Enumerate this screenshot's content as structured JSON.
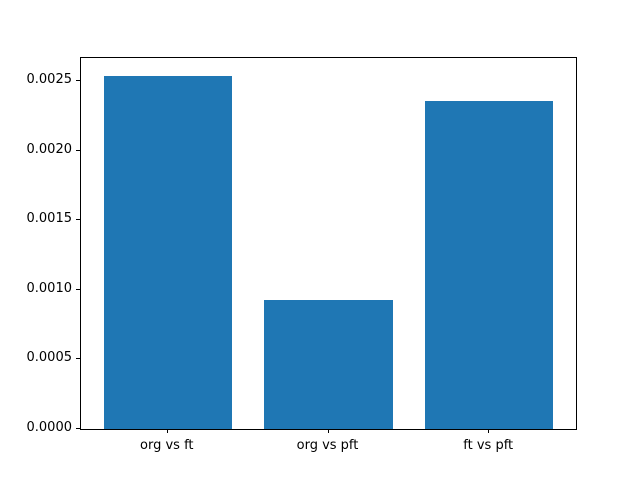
{
  "chart_data": {
    "type": "bar",
    "title": "",
    "xlabel": "",
    "ylabel": "",
    "categories": [
      "org vs ft",
      "org vs pft",
      "ft vs pft"
    ],
    "values": [
      0.00254,
      0.00093,
      0.00236
    ],
    "bar_color": "#1f77b4",
    "bar_width_units": 0.8,
    "xlim": [
      -0.54,
      2.54
    ],
    "ylim": [
      0,
      0.002667
    ],
    "yticks": [
      0.0,
      0.0005,
      0.001,
      0.0015,
      0.002,
      0.0025
    ],
    "ytick_labels": [
      "0.0000",
      "0.0005",
      "0.0010",
      "0.0015",
      "0.0020",
      "0.0025"
    ],
    "grid": false,
    "legend": null,
    "frame_color": "#000000",
    "background_color": "#ffffff"
  }
}
